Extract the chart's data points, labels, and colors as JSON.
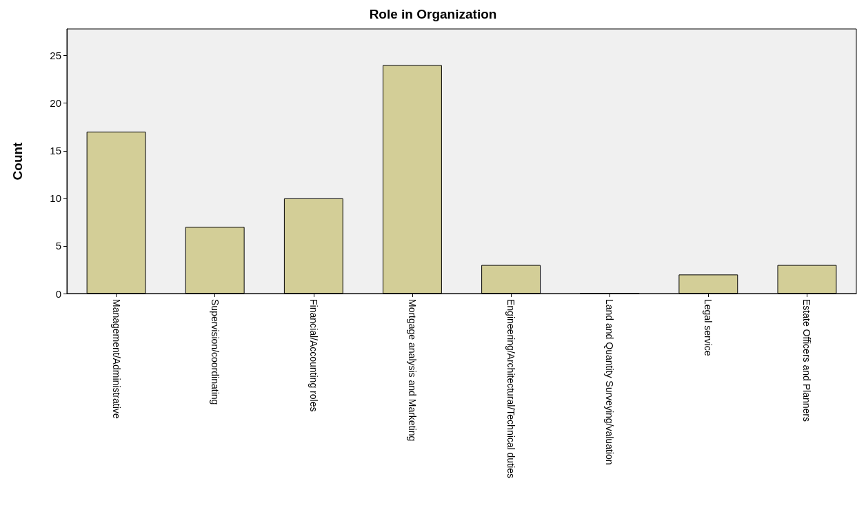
{
  "chart_data": {
    "type": "bar",
    "title": "Role in Organization",
    "ylabel": "Count",
    "categories": [
      "Management/Administrative",
      "Supervision/coordinating",
      "Financial/Accounting roles",
      "Mortgage analysis and Marketing",
      "Engineering/Architectural/Technical duties",
      "Land and Quantity Surveying/valuation",
      "Legal service",
      "Estate Officers and Planners"
    ],
    "values": [
      17,
      7,
      10,
      24,
      3,
      0,
      2,
      3
    ],
    "color": "#d3ce97",
    "ylim": [
      0,
      27.8
    ],
    "yticks": [
      0,
      5,
      10,
      15,
      20,
      25
    ],
    "grid": false
  }
}
